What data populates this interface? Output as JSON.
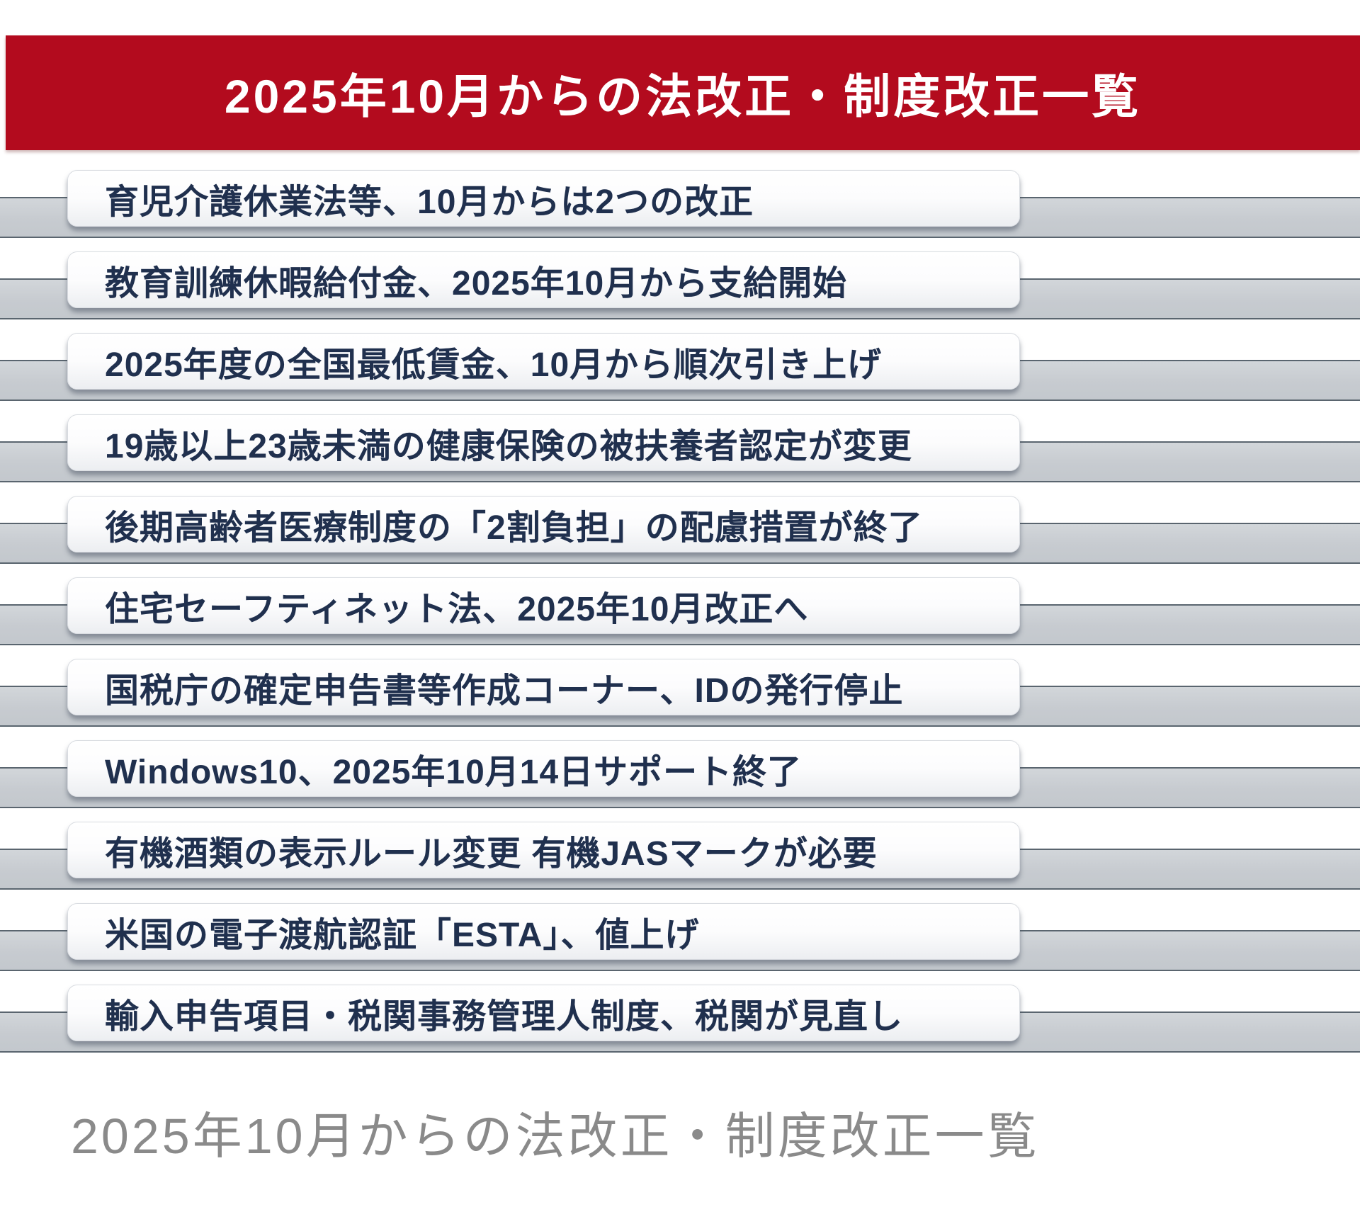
{
  "banner": {
    "title": "2025年10月からの法改正・制度改正一覧",
    "background_color": "#b30b1e",
    "title_color": "#ffffff"
  },
  "list": {
    "item_text_color": "#20304e",
    "stripe_fill_color": "#c7cbd0",
    "stripe_border_color": "#5a656f",
    "items": [
      {
        "label": "育児介護休業法等、10月からは2つの改正"
      },
      {
        "label": "教育訓練休暇給付金、2025年10月から支給開始"
      },
      {
        "label": "2025年度の全国最低賃金、10月から順次引き上げ"
      },
      {
        "label": "19歳以上23歳未満の健康保険の被扶養者認定が変更"
      },
      {
        "label": "後期高齢者医療制度の「2割負担」の配慮措置が終了"
      },
      {
        "label": "住宅セーフティネット法、2025年10月改正へ"
      },
      {
        "label": "国税庁の確定申告書等作成コーナー、IDの発行停止"
      },
      {
        "label": "Windows10、2025年10月14日サポート終了"
      },
      {
        "label": "有機酒類の表示ルール変更 有機JASマークが必要"
      },
      {
        "label": "米国の電子渡航認証「ESTA」、値上げ"
      },
      {
        "label": "輸入申告項目・税関事務管理人制度、税関が見直し"
      }
    ]
  },
  "caption": {
    "text": "2025年10月からの法改正・制度改正一覧",
    "text_color": "#8a8a8a"
  }
}
